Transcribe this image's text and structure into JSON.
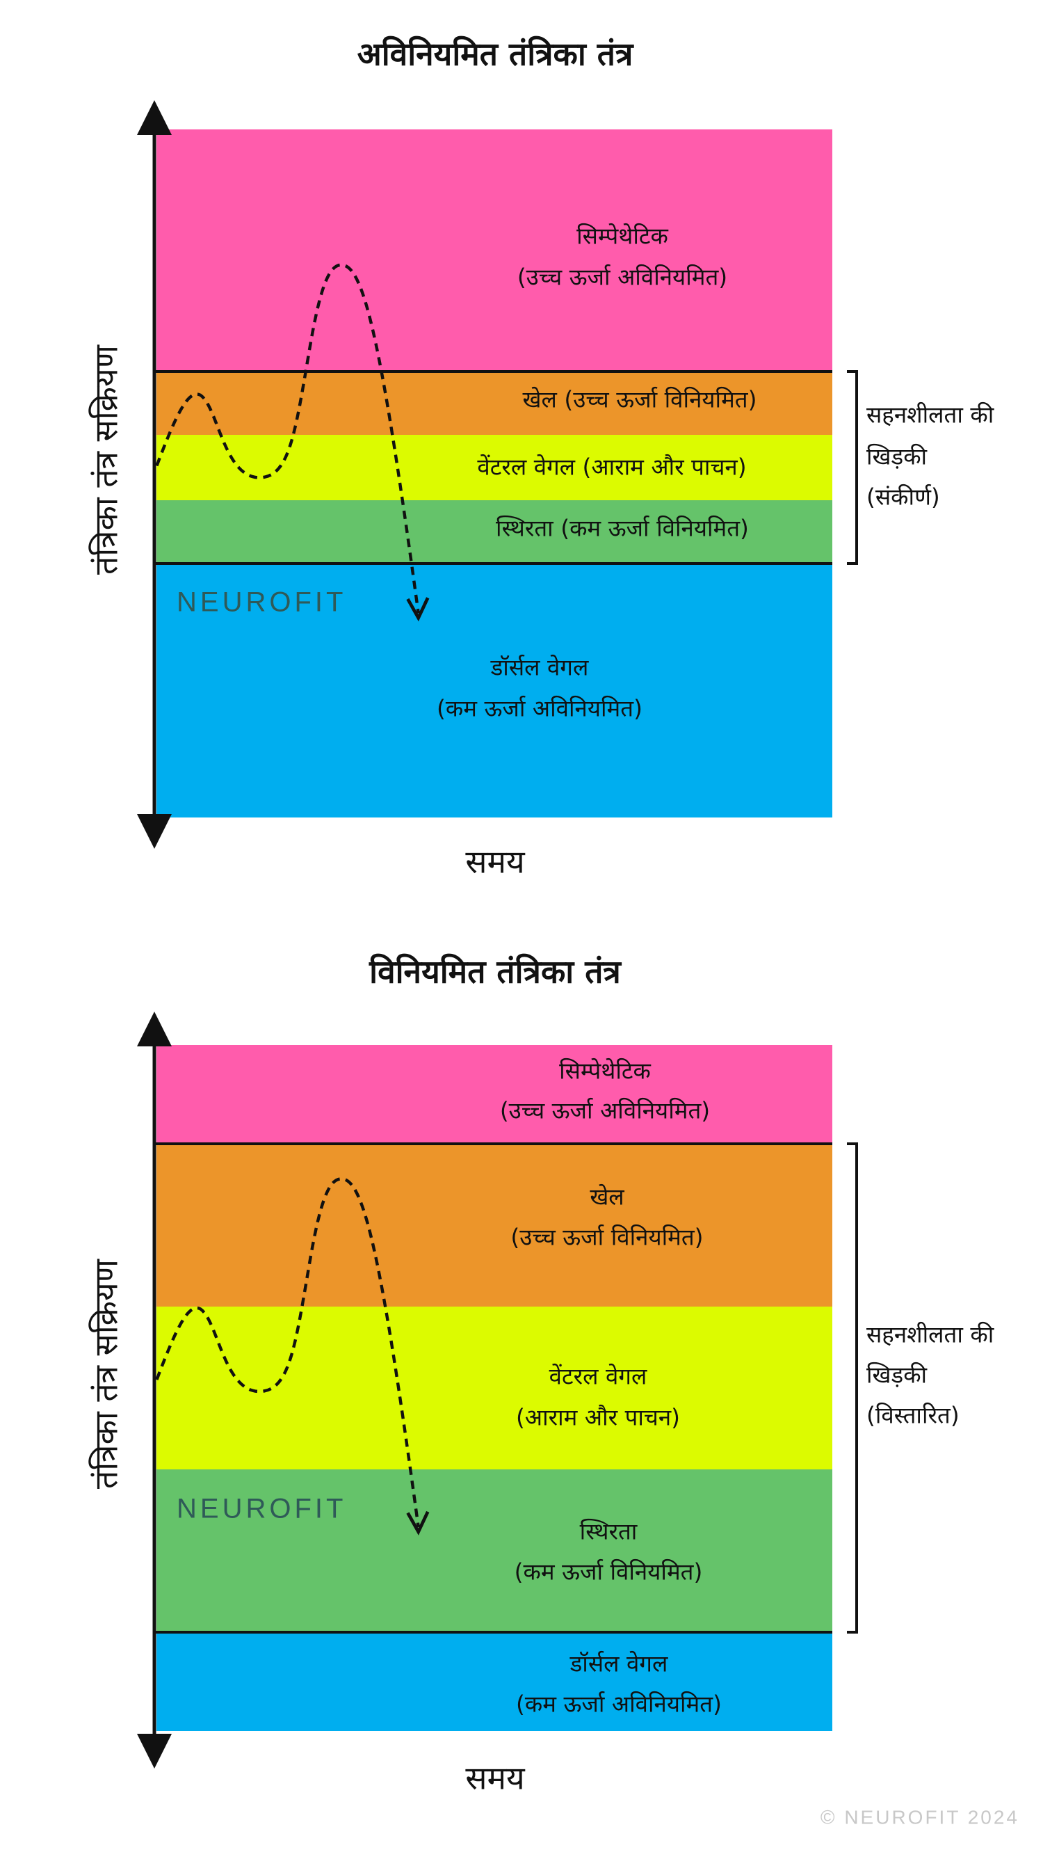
{
  "diagrams": [
    {
      "title": "अविनियमित तंत्रिका तंत्र",
      "y_axis_label": "तंत्रिका तंत्र सक्रियण",
      "x_axis_label": "समय",
      "bands": [
        {
          "lines": [
            "सिम्पेथेटिक",
            "(उच्च ऊर्जा अविनियमित)"
          ]
        },
        {
          "lines": [
            "खेल (उच्च ऊर्जा विनियमित)"
          ]
        },
        {
          "lines": [
            "वेंटरल वेगल (आराम और पाचन)"
          ]
        },
        {
          "lines": [
            "स्थिरता (कम ऊर्जा विनियमित)"
          ]
        },
        {
          "lines": [
            "डॉर्सल वेगल",
            "(कम ऊर्जा अविनियमित)"
          ]
        }
      ],
      "tolerance_window": [
        "सहनशीलता की",
        "खिड़की",
        "(संकीर्ण)"
      ]
    },
    {
      "title": "विनियमित तंत्रिका तंत्र",
      "y_axis_label": "तंत्रिका तंत्र सक्रियण",
      "x_axis_label": "समय",
      "bands": [
        {
          "lines": [
            "सिम्पेथेटिक",
            "(उच्च ऊर्जा अविनियमित)"
          ]
        },
        {
          "lines": [
            "खेल",
            "(उच्च ऊर्जा विनियमित)"
          ]
        },
        {
          "lines": [
            "वेंटरल वेगल",
            "(आराम और पाचन)"
          ]
        },
        {
          "lines": [
            "स्थिरता",
            "(कम ऊर्जा विनियमित)"
          ]
        },
        {
          "lines": [
            "डॉर्सल वेगल",
            "(कम ऊर्जा अविनियमित)"
          ]
        }
      ],
      "tolerance_window": [
        "सहनशीलता की",
        "खिड़की",
        "(विस्तारित)"
      ]
    }
  ],
  "watermark": "NEUROFIT",
  "copyright": "© NEUROFIT 2024"
}
